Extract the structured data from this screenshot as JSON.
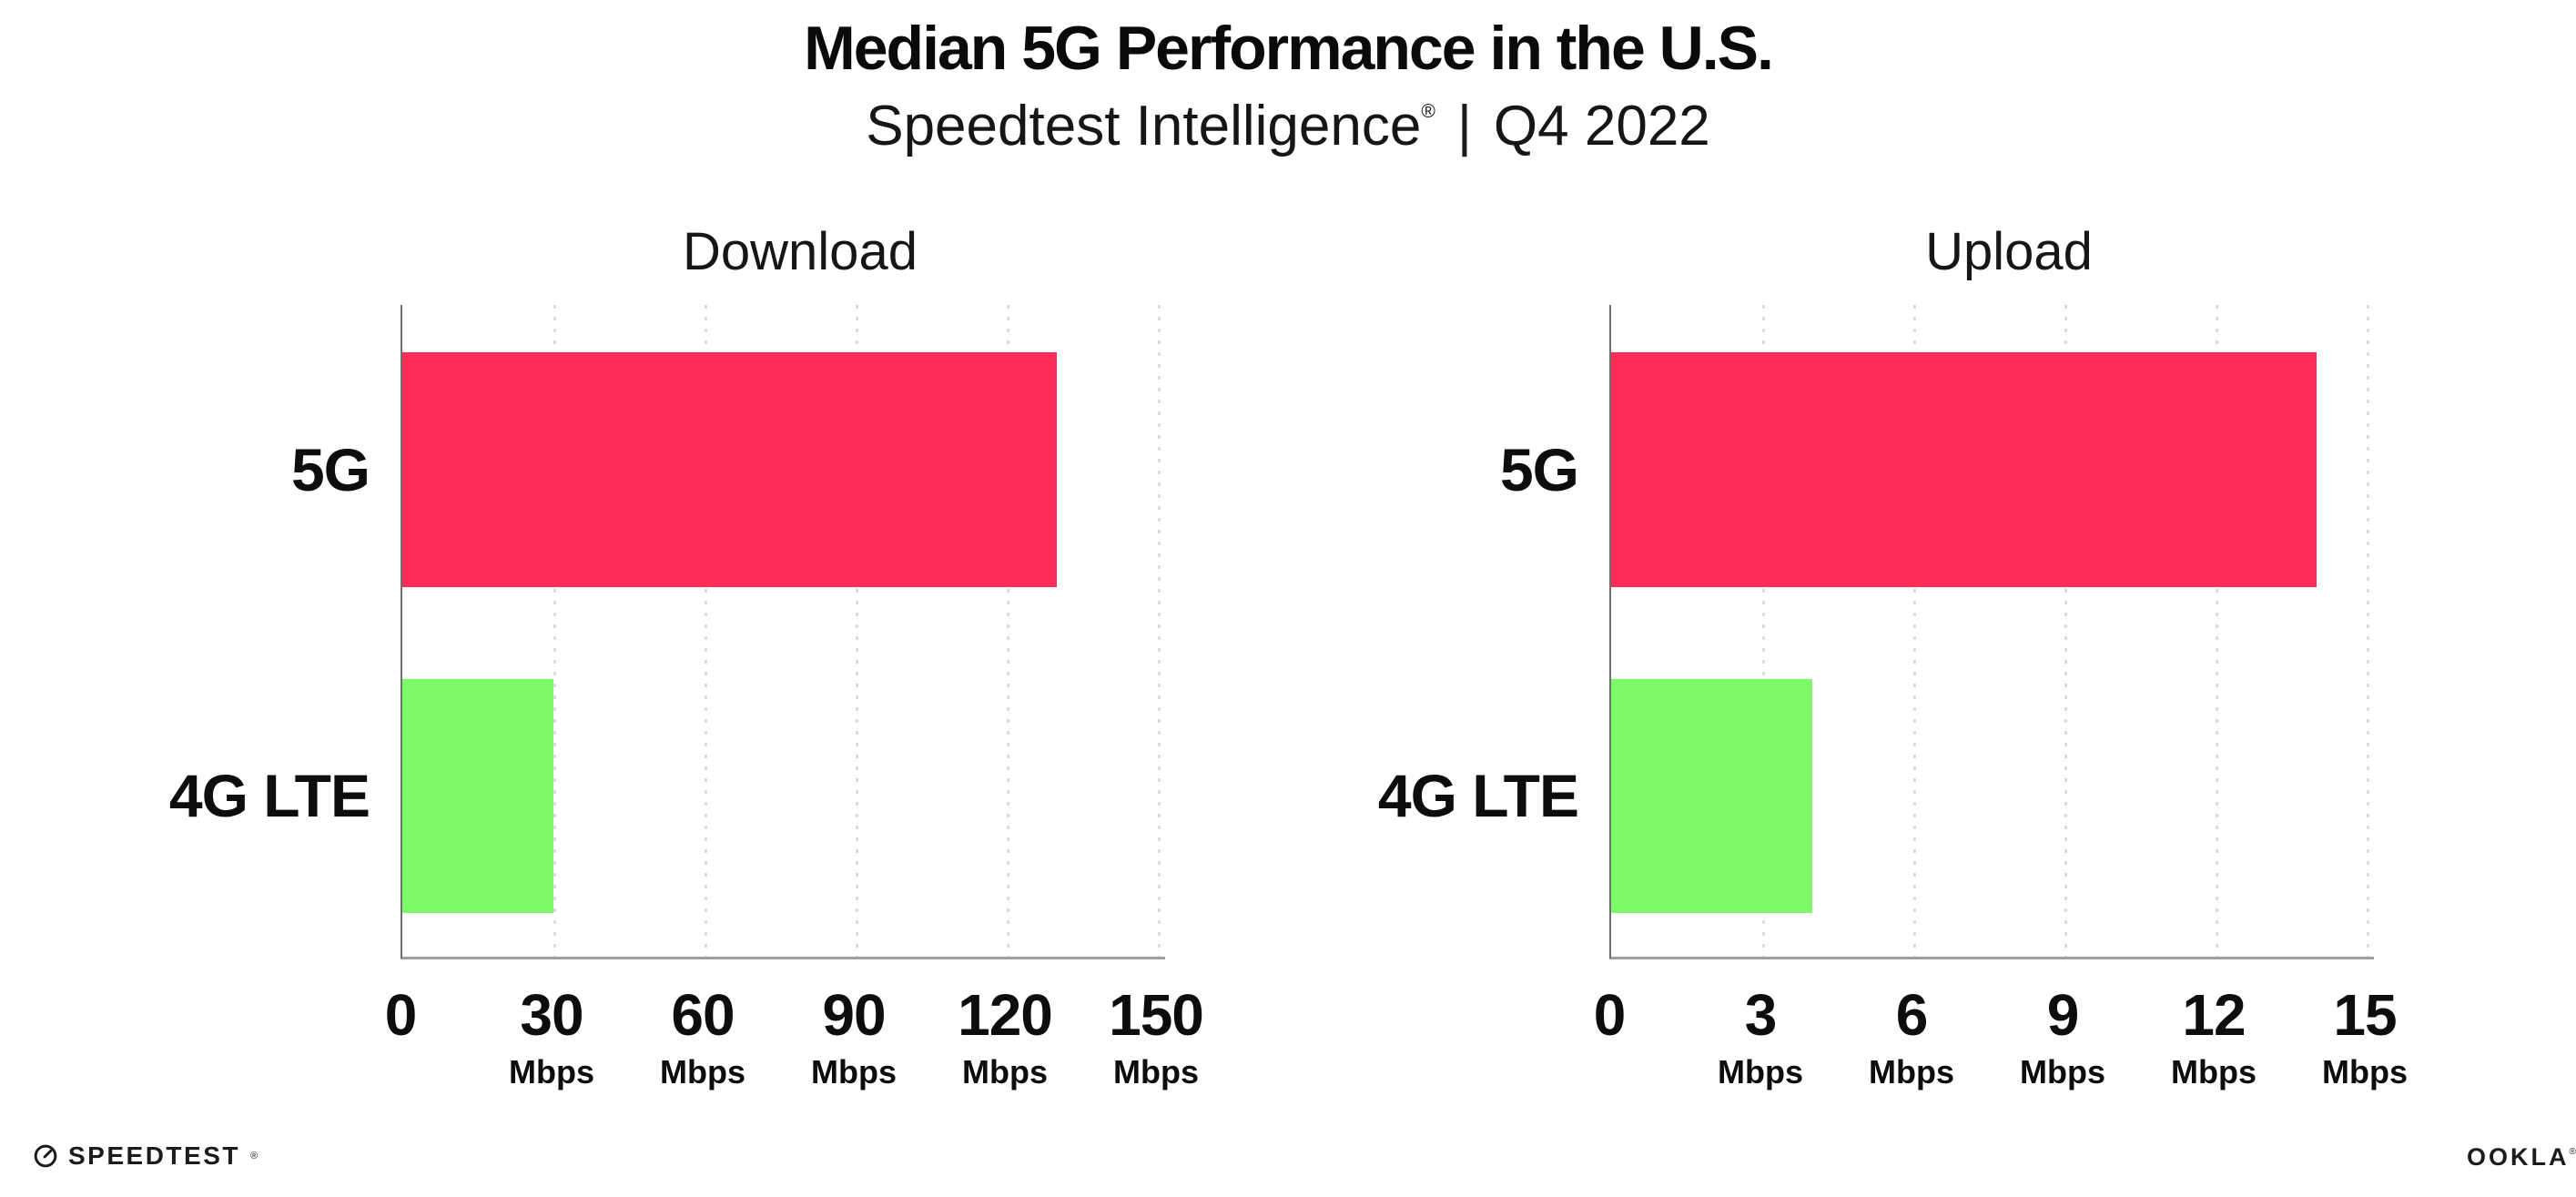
{
  "header": {
    "title": "Median 5G Performance in the U.S.",
    "subtitle_brand": "Speedtest Intelligence",
    "subtitle_reg": "®",
    "subtitle_separator": "|",
    "subtitle_period": "Q4 2022"
  },
  "chart_data": [
    {
      "type": "bar",
      "orientation": "horizontal",
      "title": "Download",
      "categories": [
        "5G",
        "4G LTE"
      ],
      "values": [
        130,
        30
      ],
      "unit": "Mbps",
      "xlim": [
        0,
        150
      ],
      "ticks": [
        0,
        30,
        60,
        90,
        120,
        150
      ],
      "bar_colors": [
        "#FC2E57",
        "#7EF967"
      ],
      "grid": "dotted-vertical",
      "legend": "none"
    },
    {
      "type": "bar",
      "orientation": "horizontal",
      "title": "Upload",
      "categories": [
        "5G",
        "4G LTE"
      ],
      "values": [
        14,
        4
      ],
      "unit": "Mbps",
      "xlim": [
        0,
        15
      ],
      "ticks": [
        0,
        3,
        6,
        9,
        12,
        15
      ],
      "bar_colors": [
        "#FC2E57",
        "#7EF967"
      ],
      "grid": "dotted-vertical",
      "legend": "none"
    }
  ],
  "colors": {
    "bar_5g": "#FC2E57",
    "bar_4g_lte": "#7EF967",
    "gridline": "#DADAE4",
    "axis_vertical": "#6F6F6F",
    "axis_horizontal": "#9E9E9E",
    "text": "#0D0D0D",
    "background": "#FFFFFF"
  },
  "footer": {
    "speedtest_wordmark": "SPEEDTEST",
    "speedtest_mark": "®",
    "speedtest_icon": "gauge-icon",
    "ookla_wordmark": "OOKLA",
    "ookla_mark": "®"
  }
}
